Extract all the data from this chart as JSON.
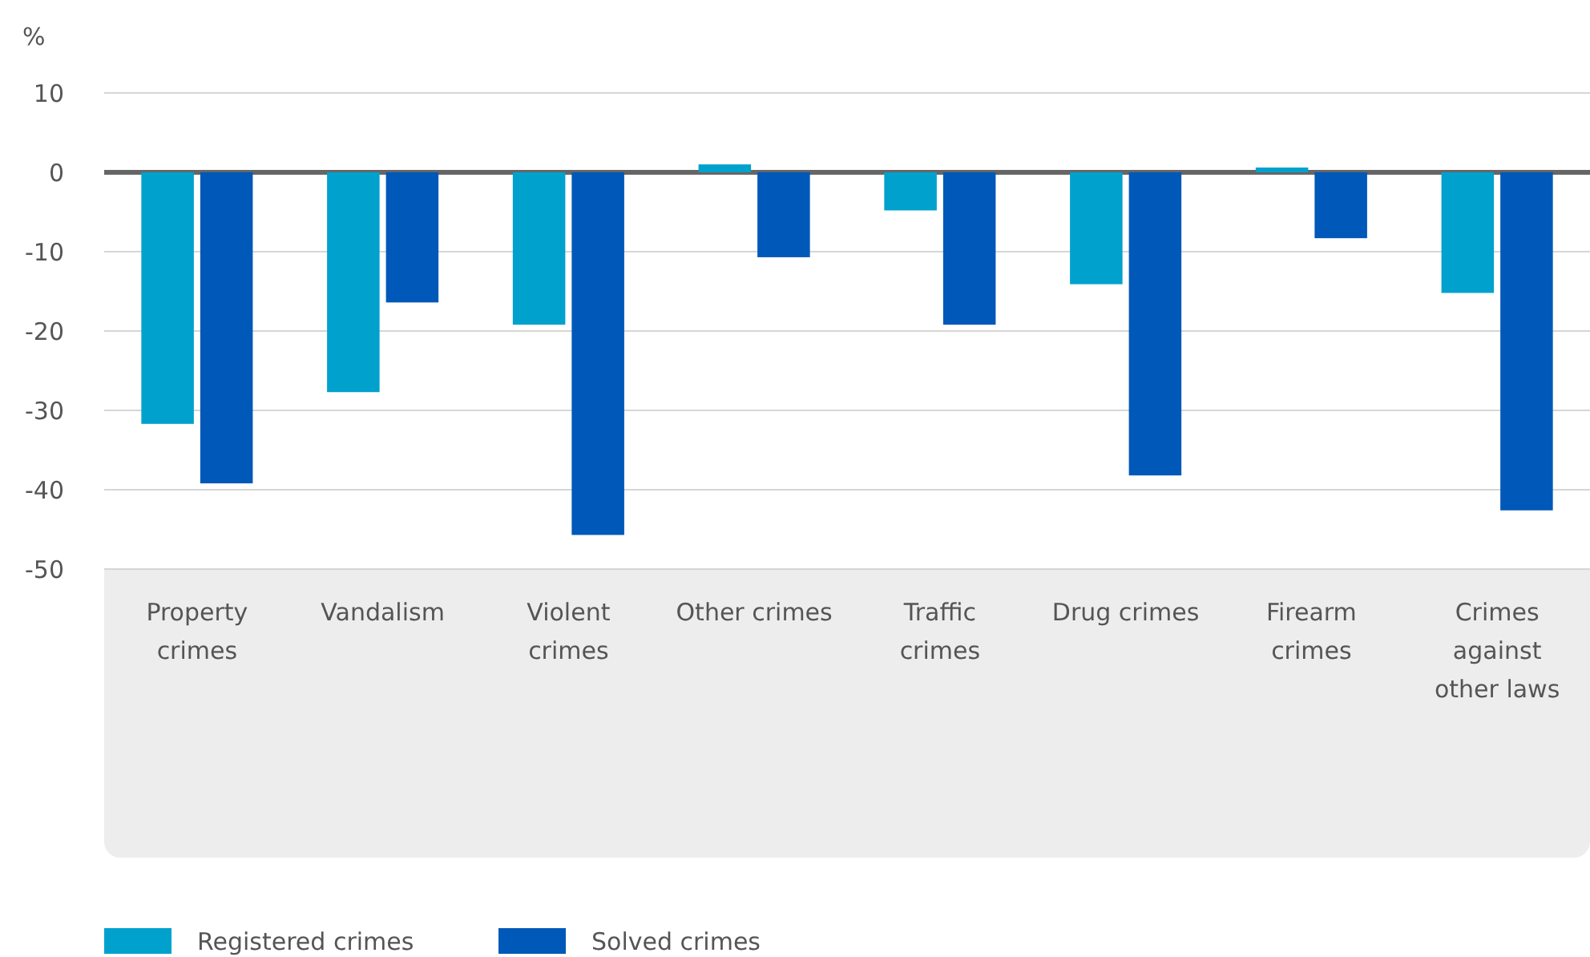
{
  "chart_data": {
    "type": "bar",
    "ylabel": "%",
    "categories": [
      "Property crimes",
      "Vandalism",
      "Violent crimes",
      "Other crimes",
      "Traffic crimes",
      "Drug crimes",
      "Firearm crimes",
      "Crimes against other laws"
    ],
    "series": [
      {
        "name": "Registered crimes",
        "color": "#00a1cd",
        "values": [
          -31.7,
          -27.7,
          -19.2,
          1,
          -4.8,
          -14.1,
          0.6,
          -15.2
        ]
      },
      {
        "name": "Solved crimes",
        "color": "#0058b8",
        "values": [
          -39.2,
          -16.4,
          -45.7,
          -10.7,
          -19.2,
          -38.2,
          -8.3,
          -42.6
        ]
      }
    ],
    "ylim": [
      -50,
      10
    ],
    "yticks": [
      -50,
      -40,
      -30,
      -20,
      -10,
      0,
      10
    ],
    "grid": "y",
    "legend": "bottom left"
  }
}
